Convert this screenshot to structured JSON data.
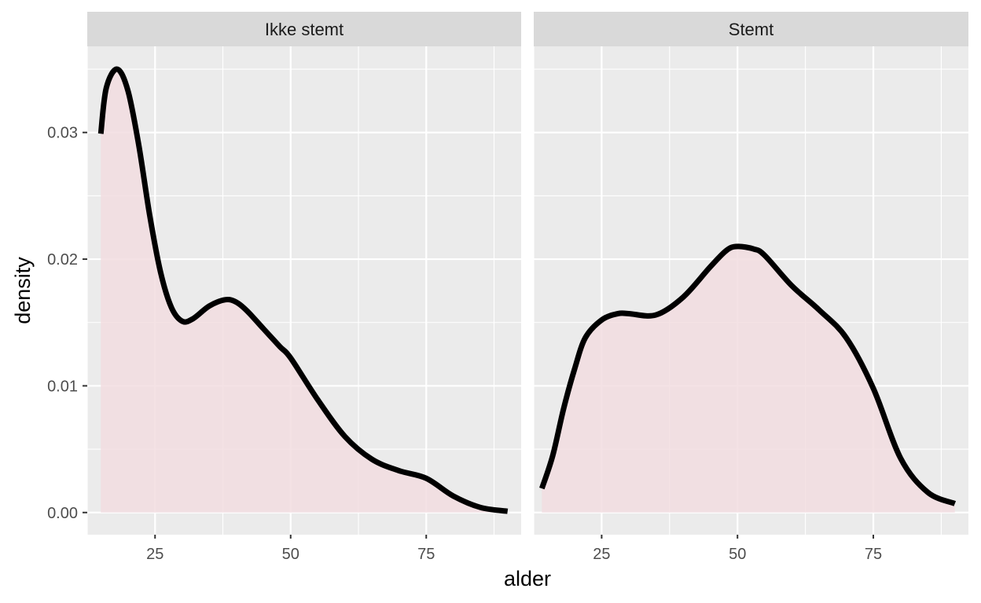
{
  "chart_data": {
    "type": "area",
    "xlabel": "alder",
    "ylabel": "density",
    "xlim": [
      12.5,
      92.5
    ],
    "ylim": [
      -0.00175,
      0.0368
    ],
    "x_ticks": [
      25,
      50,
      75
    ],
    "x_tick_labels": [
      "25",
      "50",
      "75"
    ],
    "y_ticks": [
      0.0,
      0.01,
      0.02,
      0.03
    ],
    "y_tick_labels": [
      "0.00",
      "0.01",
      "0.02",
      "0.03"
    ],
    "grid": true,
    "fill_color": "#f2dde0",
    "line_color": "#000000",
    "panel_background": "#ebebeb",
    "strip_background": "#d9d9d9",
    "panels": [
      {
        "title": "Ikke stemt",
        "x": [
          15,
          16,
          18,
          20,
          22,
          24,
          26,
          28,
          30,
          32,
          35,
          38,
          40,
          42,
          45,
          48,
          50,
          55,
          60,
          65,
          70,
          75,
          80,
          85,
          90
        ],
        "y": [
          0.0299,
          0.0335,
          0.035,
          0.0333,
          0.029,
          0.0235,
          0.019,
          0.0162,
          0.0151,
          0.0153,
          0.0163,
          0.0168,
          0.0166,
          0.0159,
          0.0145,
          0.0131,
          0.0122,
          0.0089,
          0.006,
          0.0042,
          0.0033,
          0.0027,
          0.0013,
          0.0004,
          0.0001
        ]
      },
      {
        "title": "Stemt",
        "x": [
          14,
          16,
          18,
          20,
          22,
          25,
          28,
          30,
          35,
          40,
          45,
          48,
          50,
          53,
          55,
          60,
          65,
          70,
          75,
          80,
          85,
          90
        ],
        "y": [
          0.0019,
          0.0045,
          0.0082,
          0.0113,
          0.0138,
          0.0152,
          0.0157,
          0.0157,
          0.0156,
          0.017,
          0.0194,
          0.0207,
          0.021,
          0.0208,
          0.0203,
          0.0179,
          0.016,
          0.0138,
          0.0098,
          0.0043,
          0.0016,
          0.0007
        ]
      }
    ]
  }
}
